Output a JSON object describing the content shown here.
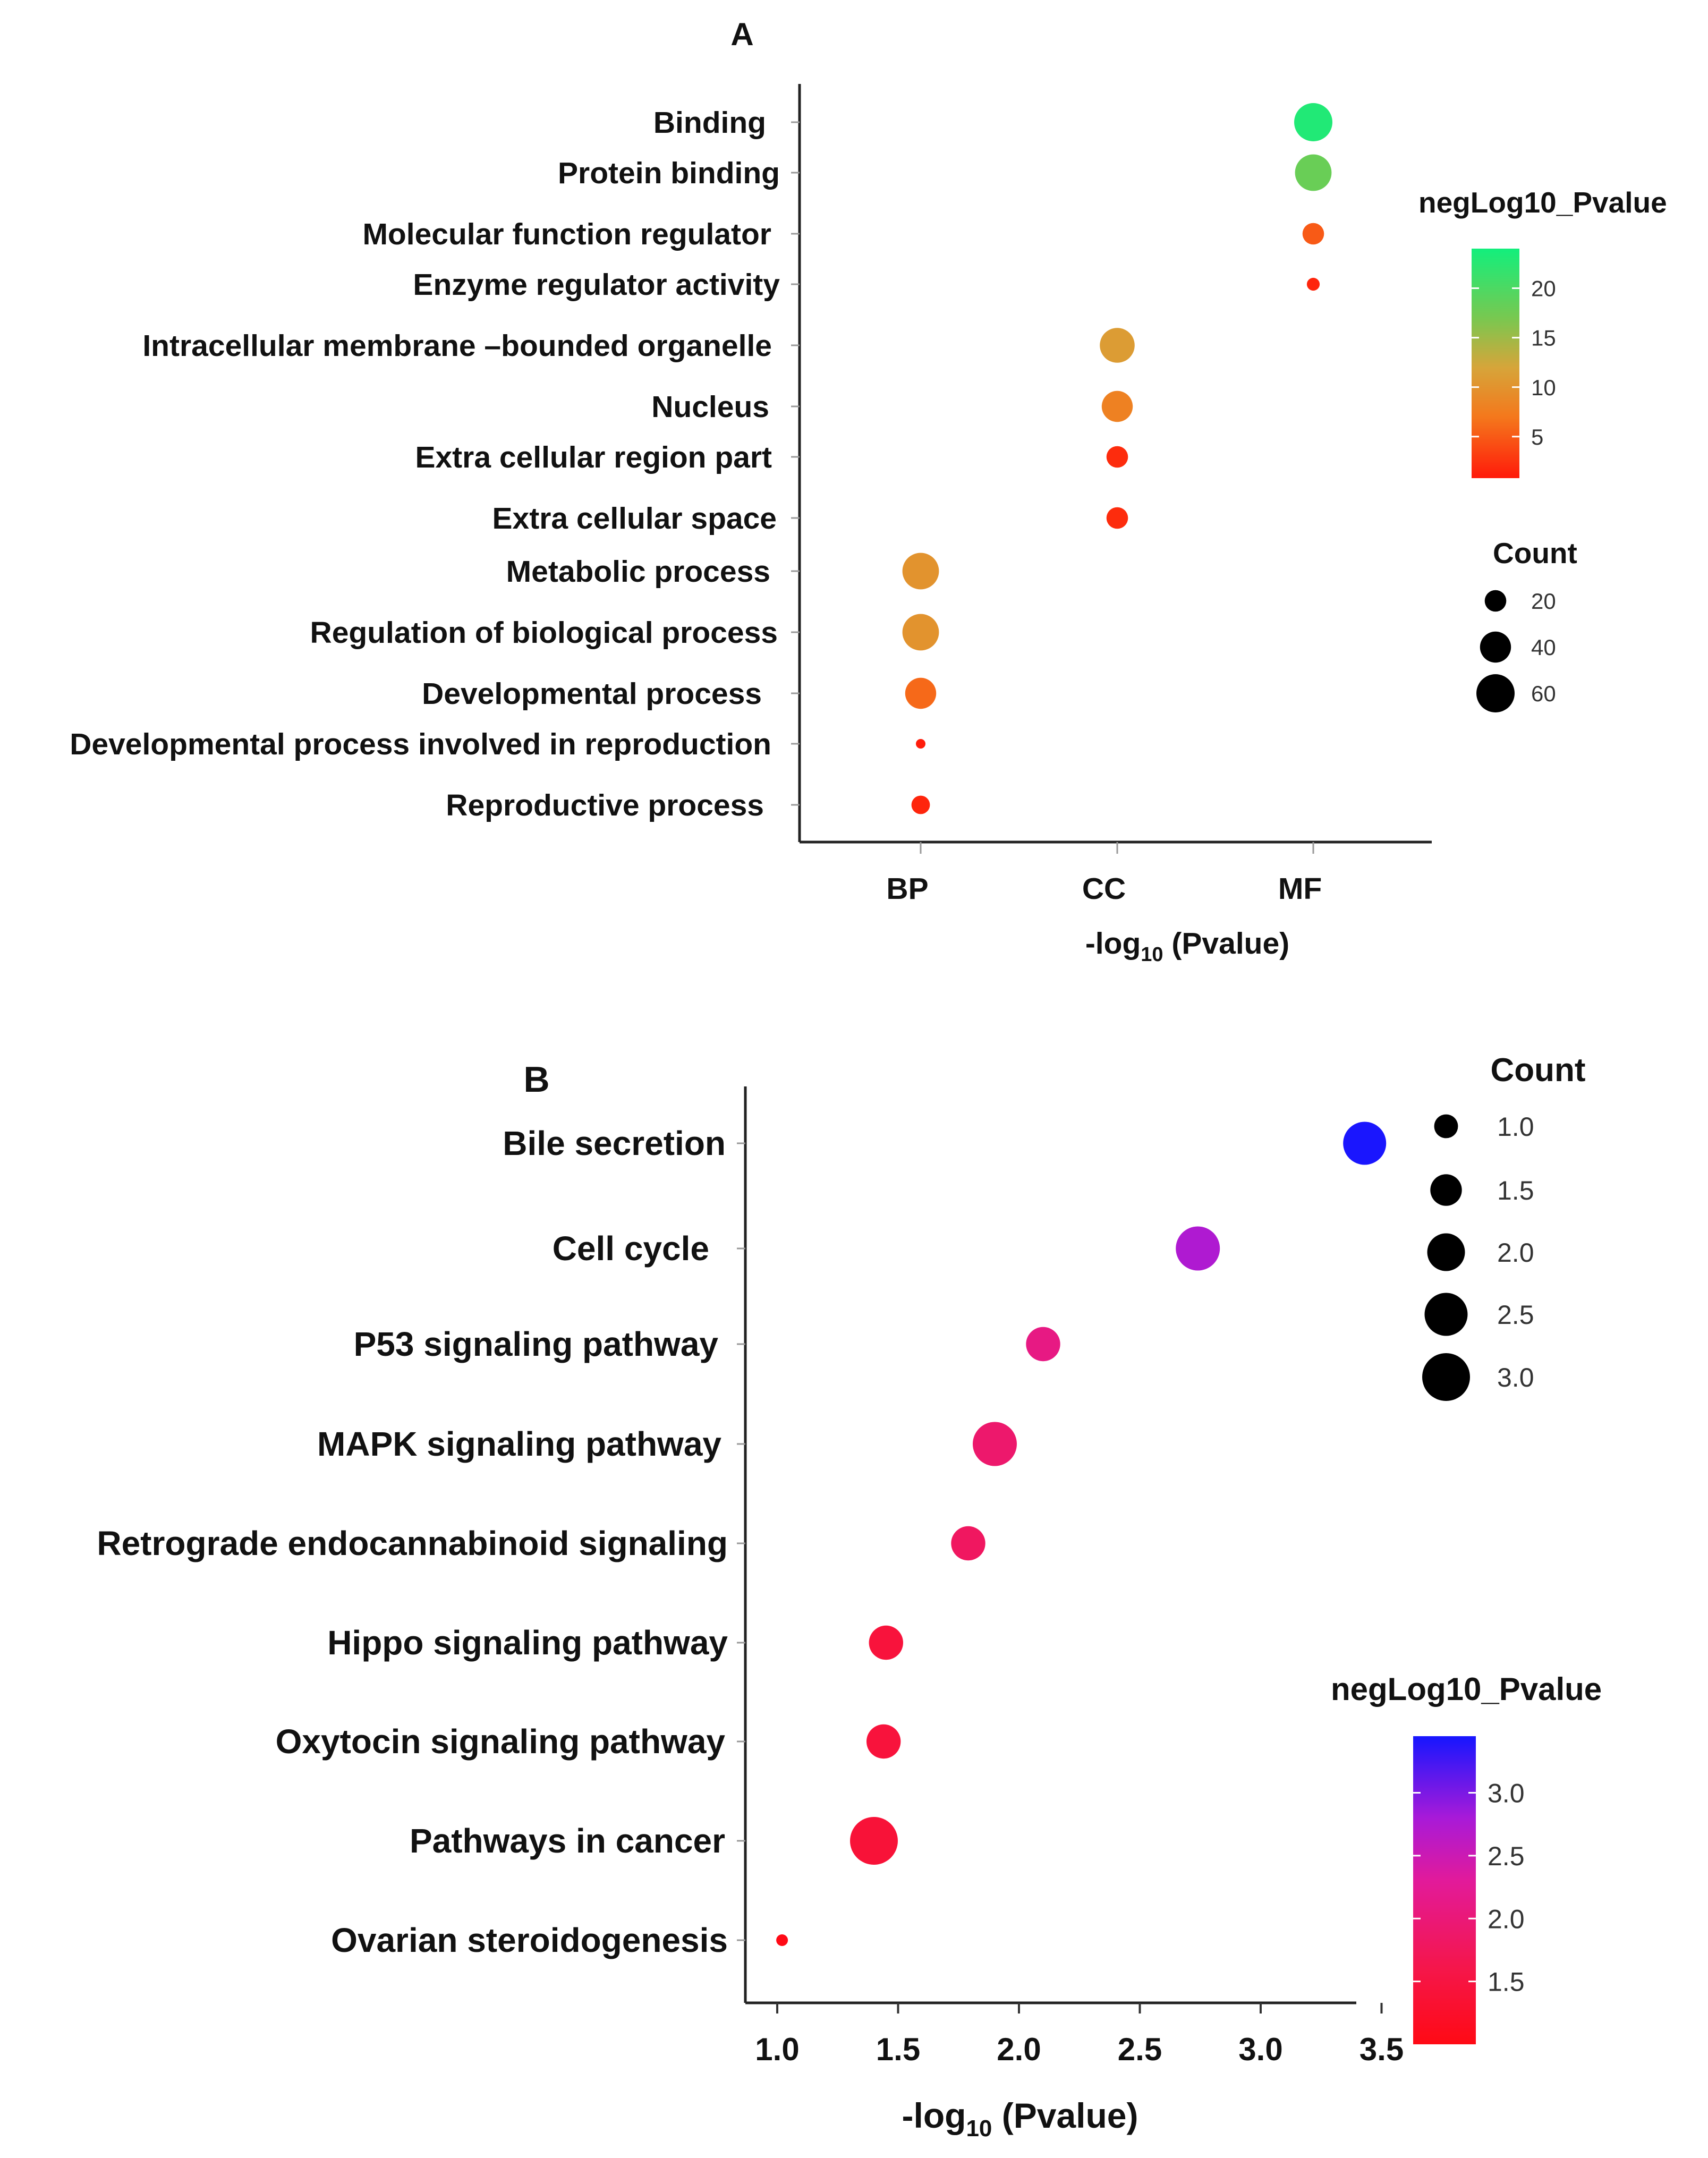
{
  "chart_data": [
    {
      "panel": "A",
      "type": "scatter",
      "title": "A",
      "xlabel_main": "-log",
      "xlabel_sub": "10",
      "xlabel_tail": " (Pvalue)",
      "categories": [
        "BP",
        "CC",
        "MF"
      ],
      "terms": [
        {
          "label": "Binding",
          "category": "MF",
          "neglog10_pvalue": 23,
          "count": 60
        },
        {
          "label": "Protein binding",
          "category": "MF",
          "neglog10_pvalue": 18,
          "count": 55
        },
        {
          "label": "Molecular function regulator",
          "category": "MF",
          "neglog10_pvalue": 5,
          "count": 20
        },
        {
          "label": "Enzyme regulator activity",
          "category": "MF",
          "neglog10_pvalue": 1.5,
          "count": 8
        },
        {
          "label": "Intracellular membrane –bounded organelle",
          "category": "CC",
          "neglog10_pvalue": 11,
          "count": 50
        },
        {
          "label": "Nucleus",
          "category": "CC",
          "neglog10_pvalue": 8,
          "count": 40
        },
        {
          "label": "Extra cellular region part",
          "category": "CC",
          "neglog10_pvalue": 2,
          "count": 20
        },
        {
          "label": "Extra cellular space",
          "category": "CC",
          "neglog10_pvalue": 2,
          "count": 20
        },
        {
          "label": "Metabolic process",
          "category": "BP",
          "neglog10_pvalue": 10,
          "count": 55
        },
        {
          "label": "Regulation of biological process",
          "category": "BP",
          "neglog10_pvalue": 10,
          "count": 55
        },
        {
          "label": "Developmental process",
          "category": "BP",
          "neglog10_pvalue": 6,
          "count": 40
        },
        {
          "label": "Developmental process involved in reproduction",
          "category": "BP",
          "neglog10_pvalue": 1,
          "count": 5
        },
        {
          "label": "Reproductive process",
          "category": "BP",
          "neglog10_pvalue": 1.5,
          "count": 15
        }
      ],
      "color_scale": {
        "title": "negLog10_Pvalue",
        "range": [
          0.8,
          24
        ],
        "stops": [
          {
            "value": 0.8,
            "color": "#ff1a0a"
          },
          {
            "value": 7,
            "color": "#f4781c"
          },
          {
            "value": 12,
            "color": "#d6a53a"
          },
          {
            "value": 17,
            "color": "#78c850"
          },
          {
            "value": 24,
            "color": "#12ef7c"
          }
        ],
        "ticks": [
          "20",
          "15",
          "10",
          "5"
        ],
        "tick_values": [
          20,
          15,
          10,
          5
        ]
      },
      "size_legend": {
        "title": "Count",
        "labels": [
          "20",
          "40",
          "60"
        ],
        "values": [
          20,
          40,
          60
        ],
        "range": [
          5,
          60
        ]
      }
    },
    {
      "panel": "B",
      "type": "scatter",
      "title": "B",
      "xlabel_main": "-log",
      "xlabel_sub": "10",
      "xlabel_tail": " (Pvalue)",
      "xlim": [
        0.95,
        3.55
      ],
      "xticks": [
        "1.0",
        "1.5",
        "2.0",
        "2.5",
        "3.0",
        "3.5"
      ],
      "xtick_values": [
        1.0,
        1.5,
        2.0,
        2.5,
        3.0,
        3.5
      ],
      "pathways": [
        {
          "label": "Bile secretion",
          "neglog10_pvalue": 3.43,
          "count": 2.5
        },
        {
          "label": "Cell cycle",
          "neglog10_pvalue": 2.74,
          "count": 2.6
        },
        {
          "label": "P53 signaling pathway",
          "neglog10_pvalue": 2.1,
          "count": 1.7
        },
        {
          "label": "MAPK signaling pathway",
          "neglog10_pvalue": 1.9,
          "count": 2.6
        },
        {
          "label": "Retrograde endocannabinoid signaling",
          "neglog10_pvalue": 1.79,
          "count": 1.7
        },
        {
          "label": "Hippo signaling pathway",
          "neglog10_pvalue": 1.45,
          "count": 1.7
        },
        {
          "label": "Oxytocin signaling pathway",
          "neglog10_pvalue": 1.44,
          "count": 1.7
        },
        {
          "label": "Pathways in cancer",
          "neglog10_pvalue": 1.4,
          "count": 3.0
        },
        {
          "label": "Ovarian steroidogenesis",
          "neglog10_pvalue": 1.02,
          "count": 0.5
        }
      ],
      "color_scale": {
        "title": "negLog10_Pvalue",
        "range": [
          1.0,
          3.45
        ],
        "stops": [
          {
            "value": 1.0,
            "color": "#ff0a14"
          },
          {
            "value": 1.6,
            "color": "#f5164a"
          },
          {
            "value": 2.3,
            "color": "#e21a9a"
          },
          {
            "value": 2.8,
            "color": "#a81ad8"
          },
          {
            "value": 3.45,
            "color": "#1616ff"
          }
        ],
        "ticks": [
          "3.0",
          "2.5",
          "2.0",
          "1.5"
        ],
        "tick_values": [
          3.0,
          2.5,
          2.0,
          1.5
        ]
      },
      "size_legend": {
        "title": "Count",
        "labels": [
          "1.0",
          "1.5",
          "2.0",
          "2.5",
          "3.0"
        ],
        "values": [
          1.0,
          1.5,
          2.0,
          2.5,
          3.0
        ],
        "range": [
          0.5,
          3.0
        ]
      }
    }
  ]
}
